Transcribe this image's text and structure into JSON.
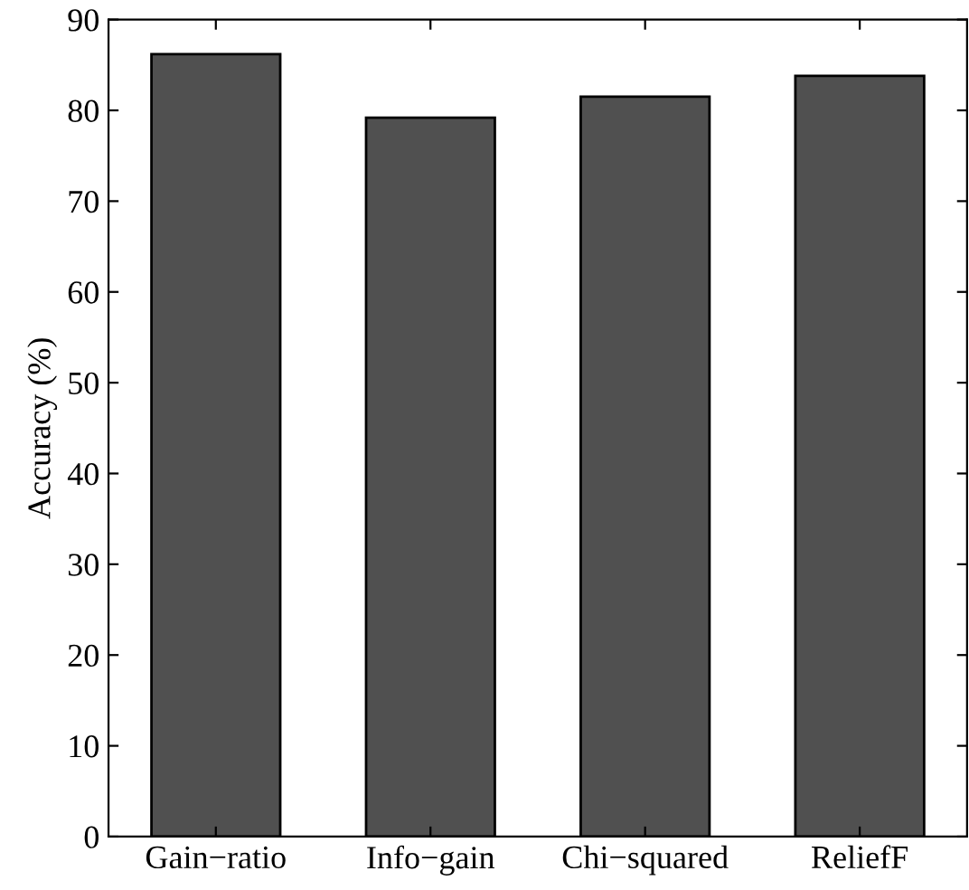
{
  "chart_data": {
    "type": "bar",
    "ylabel": "Accuracy (%)",
    "categories": [
      "Gain−ratio",
      "Info−gain",
      "Chi−squared",
      "ReliefF"
    ],
    "values": [
      86.2,
      79.2,
      81.5,
      83.8
    ],
    "color": "#505050",
    "ylim": [
      0,
      90
    ],
    "yticks": [
      0,
      10,
      20,
      30,
      40,
      50,
      60,
      70,
      80,
      90
    ],
    "grid": false
  }
}
